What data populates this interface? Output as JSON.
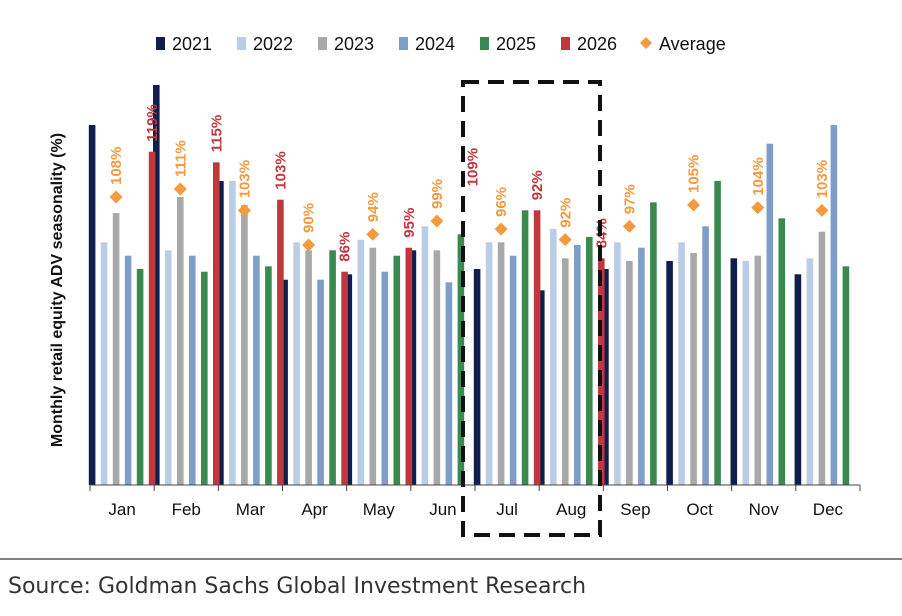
{
  "chart_data": {
    "type": "bar",
    "ylabel": "Monthly retail equity ADV seasonality (%)",
    "categories": [
      "Jan",
      "Feb",
      "Mar",
      "Apr",
      "May",
      "Jun",
      "Jul",
      "Aug",
      "Sep",
      "Oct",
      "Nov",
      "Dec"
    ],
    "ylim": [
      0,
      150
    ],
    "grid": false,
    "legend_position": "top",
    "series": [
      {
        "name": "2021",
        "color": "#0d1f4a",
        "values": [
          135,
          150,
          114,
          77,
          79,
          88,
          81,
          73,
          81,
          84,
          85,
          79
        ]
      },
      {
        "name": "2022",
        "color": "#b9cde6",
        "values": [
          91,
          88,
          114,
          91,
          92,
          97,
          91,
          96,
          91,
          91,
          84,
          85
        ]
      },
      {
        "name": "2023",
        "color": "#a8a8a8",
        "values": [
          102,
          108,
          105,
          88,
          89,
          88,
          91,
          85,
          84,
          87,
          86,
          95
        ]
      },
      {
        "name": "2024",
        "color": "#7f9dc9",
        "values": [
          86,
          86,
          86,
          77,
          80,
          76,
          86,
          90,
          89,
          97,
          128,
          135
        ]
      },
      {
        "name": "2025",
        "color": "#3a8a4f",
        "values": [
          81,
          80,
          82,
          88,
          86,
          94,
          103,
          93,
          106,
          114,
          100,
          82
        ]
      },
      {
        "name": "2026",
        "color": "#c0383e",
        "values": [
          125,
          121,
          107,
          80,
          89,
          null,
          103,
          85,
          null,
          null,
          null,
          null
        ]
      }
    ],
    "average": {
      "name": "Average",
      "color": "#f39a3d",
      "values": [
        108,
        111,
        103,
        90,
        94,
        99,
        96,
        92,
        97,
        105,
        104,
        103
      ]
    },
    "data_labels": [
      "108%",
      "119%",
      "111%",
      "115%",
      "103%",
      "103%",
      "90%",
      "86%",
      "94%",
      "95%",
      "99%",
      "109%",
      "96%",
      "92%",
      "92%",
      "84%",
      "97%",
      "105%",
      "104%",
      "103%"
    ],
    "highlight_categories": [
      "Jul",
      "Aug"
    ],
    "source": "Source: Goldman Sachs Global Investment Research"
  }
}
